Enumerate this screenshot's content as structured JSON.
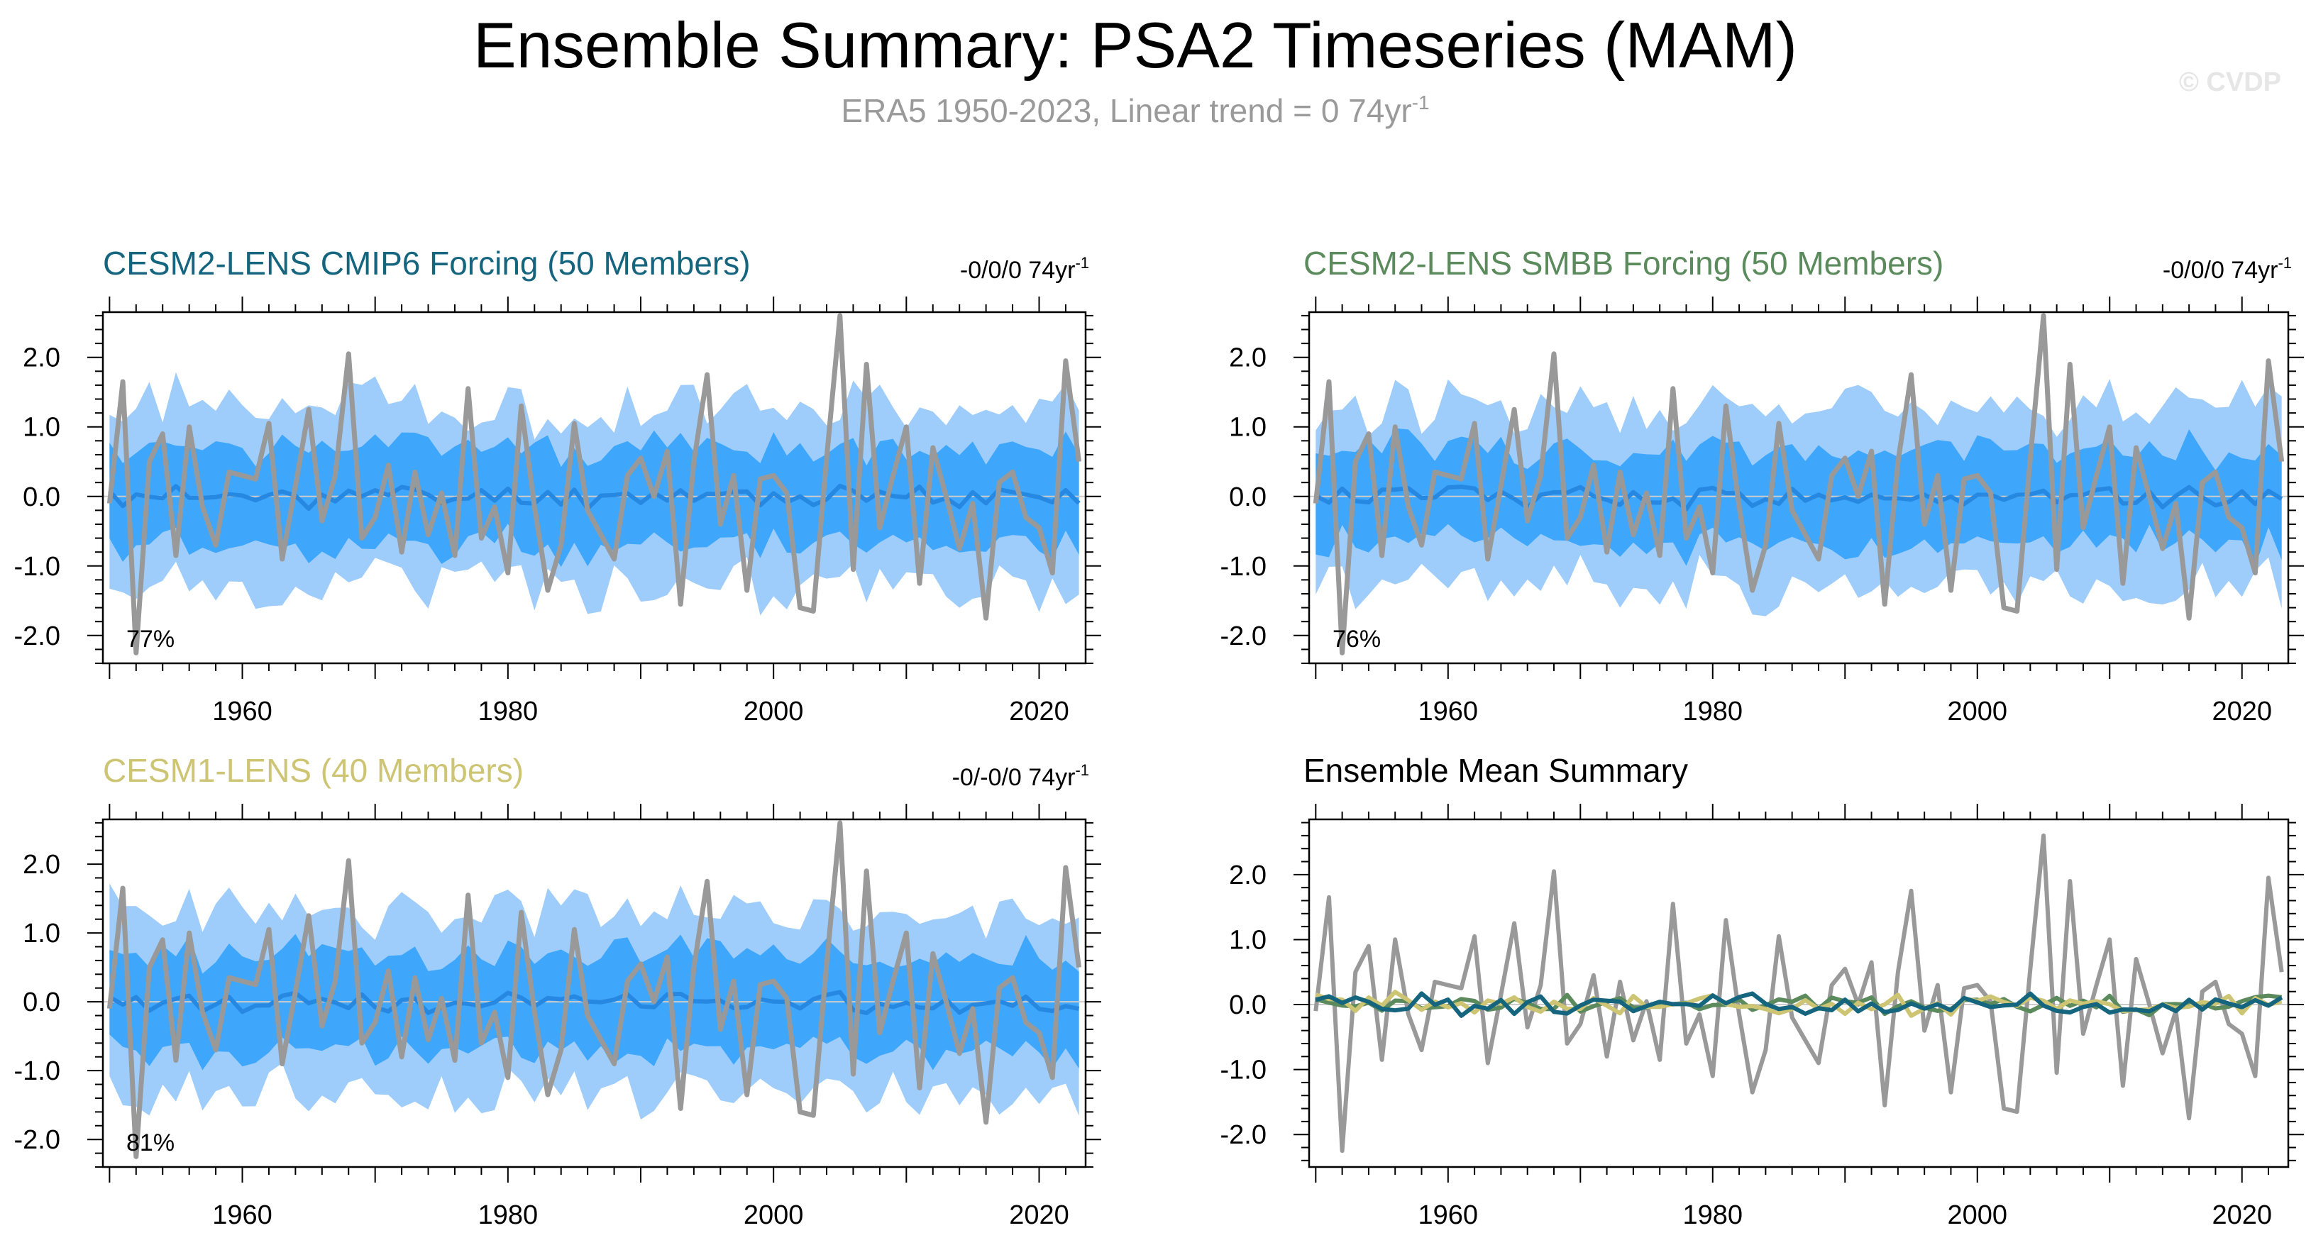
{
  "title": "Ensemble Summary: PSA2 Timeseries (MAM)",
  "subtitle": {
    "prefix": "ERA5 1950-2023, Linear trend = 0 74yr",
    "exponent": "-1"
  },
  "watermark": "© CVDP",
  "colors": {
    "obs": "#999999",
    "band_outer": "#9fcdfb",
    "band_inner": "#3ea6fb",
    "ens_mean": "#2688e0",
    "cesm2_cmip6": "#15657f",
    "cesm2_smbb": "#5b8a5c",
    "cesm1": "#cdc573"
  },
  "chart_data": [
    {
      "type": "area",
      "title": "CESM2-LENS CMIP6 Forcing (50 Members)",
      "title_color": "#15657f",
      "trend_label": "-0/0/0 74yr",
      "trend_exponent": "-1",
      "percent_label": "77%",
      "xlim": [
        1949.5,
        2023.5
      ],
      "ylim": [
        -2.4,
        2.65
      ],
      "xticks": [
        "1960",
        "1980",
        "2000",
        "2020"
      ],
      "yticks": [
        "2.0",
        "1.0",
        "0.0",
        "-1.0",
        "-2.0"
      ],
      "series": [
        {
          "name": "ensemble-mean",
          "seed": 11,
          "amplitude": 0.13
        },
        {
          "name": "observed",
          "source": "obs"
        }
      ],
      "bands": [
        {
          "name": "outer",
          "half_width": 1.3,
          "seed": 21
        },
        {
          "name": "inner",
          "half_width": 0.7,
          "seed": 31
        }
      ]
    },
    {
      "type": "area",
      "title": "CESM2-LENS SMBB Forcing (50 Members)",
      "title_color": "#5b8a5c",
      "trend_label": "-0/0/0 74yr",
      "trend_exponent": "-1",
      "percent_label": "76%",
      "xlim": [
        1949.5,
        2023.5
      ],
      "ylim": [
        -2.4,
        2.65
      ],
      "xticks": [
        "1960",
        "1980",
        "2000",
        "2020"
      ],
      "yticks": [
        "2.0",
        "1.0",
        "0.0",
        "-1.0",
        "-2.0"
      ],
      "series": [
        {
          "name": "ensemble-mean",
          "seed": 12,
          "amplitude": 0.13
        },
        {
          "name": "observed",
          "source": "obs"
        }
      ],
      "bands": [
        {
          "name": "outer",
          "half_width": 1.3,
          "seed": 22
        },
        {
          "name": "inner",
          "half_width": 0.7,
          "seed": 32
        }
      ]
    },
    {
      "type": "area",
      "title": "CESM1-LENS (40 Members)",
      "title_color": "#cdc573",
      "trend_label": "-0/-0/0 74yr",
      "trend_exponent": "-1",
      "percent_label": "81%",
      "xlim": [
        1949.5,
        2023.5
      ],
      "ylim": [
        -2.4,
        2.65
      ],
      "xticks": [
        "1960",
        "1980",
        "2000",
        "2020"
      ],
      "yticks": [
        "2.0",
        "1.0",
        "0.0",
        "-1.0",
        "-2.0"
      ],
      "series": [
        {
          "name": "ensemble-mean",
          "seed": 13,
          "amplitude": 0.13
        },
        {
          "name": "observed",
          "source": "obs"
        }
      ],
      "bands": [
        {
          "name": "outer",
          "half_width": 1.3,
          "seed": 23
        },
        {
          "name": "inner",
          "half_width": 0.7,
          "seed": 33
        }
      ]
    },
    {
      "type": "line",
      "title": "Ensemble Mean Summary",
      "title_color": "#000000",
      "xlim": [
        1949.5,
        2023.5
      ],
      "ylim": [
        -2.5,
        2.85
      ],
      "xticks": [
        "1960",
        "1980",
        "2000",
        "2020"
      ],
      "yticks": [
        "2.0",
        "1.0",
        "0.0",
        "-1.0",
        "-2.0"
      ],
      "series": [
        {
          "name": "observed",
          "source": "obs"
        },
        {
          "name": "CESM2-LENS SMBB",
          "seed": 41,
          "amplitude": 0.13
        },
        {
          "name": "CESM1-LENS",
          "seed": 42,
          "amplitude": 0.14
        },
        {
          "name": "CESM2-LENS CMIP6",
          "seed": 43,
          "amplitude": 0.13
        }
      ]
    }
  ],
  "obs": {
    "x_start": 1950,
    "values": [
      -0.1,
      1.65,
      -2.25,
      0.5,
      0.9,
      -0.85,
      1.0,
      -0.15,
      -0.7,
      0.35,
      0.3,
      0.25,
      1.05,
      -0.9,
      0.15,
      1.25,
      -0.35,
      0.3,
      2.05,
      -0.6,
      -0.3,
      0.45,
      -0.8,
      0.35,
      -0.55,
      0.05,
      -0.85,
      1.55,
      -0.6,
      -0.15,
      -1.1,
      1.3,
      -0.15,
      -1.35,
      -0.7,
      1.05,
      -0.2,
      -0.55,
      -0.9,
      0.3,
      0.55,
      0.0,
      0.65,
      -1.55,
      0.5,
      1.75,
      -0.4,
      0.3,
      -1.35,
      0.25,
      0.3,
      0.05,
      -1.6,
      -1.65,
      0.55,
      2.6,
      -1.05,
      1.9,
      -0.45,
      0.3,
      1.0,
      -1.25,
      0.7,
      0.0,
      -0.75,
      -0.1,
      -1.75,
      0.2,
      0.35,
      -0.3,
      -0.45,
      -1.1,
      1.95,
      0.5
    ]
  }
}
